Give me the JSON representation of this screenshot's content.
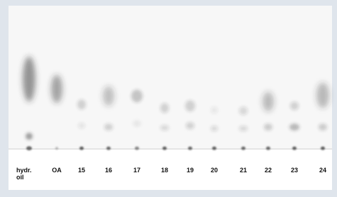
{
  "lanes": [
    {
      "label": [
        "hydr.",
        "oil"
      ]
    },
    {
      "label": [
        "OA"
      ]
    },
    {
      "label": [
        "15"
      ]
    },
    {
      "label": [
        "16"
      ]
    },
    {
      "label": [
        "17"
      ]
    },
    {
      "label": [
        "18"
      ]
    },
    {
      "label": [
        "19"
      ]
    },
    {
      "label": [
        "20"
      ]
    },
    {
      "label": [
        "21"
      ]
    },
    {
      "label": [
        "22"
      ]
    },
    {
      "label": [
        "23"
      ]
    },
    {
      "label": [
        "24"
      ]
    }
  ]
}
